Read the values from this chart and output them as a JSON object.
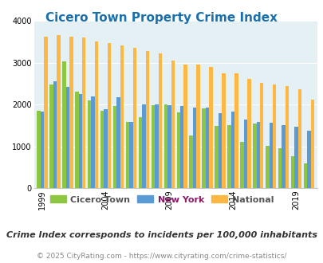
{
  "title": "Cicero Town Property Crime Index",
  "title_color": "#1a6fad",
  "subtitle": "Crime Index corresponds to incidents per 100,000 inhabitants",
  "footer": "© 2025 CityRating.com - https://www.cityrating.com/crime-statistics/",
  "years": [
    1999,
    2000,
    2001,
    2002,
    2003,
    2004,
    2005,
    2006,
    2007,
    2008,
    2009,
    2010,
    2011,
    2012,
    2013,
    2014,
    2015,
    2016,
    2017,
    2018,
    2019,
    2020
  ],
  "cicero_town": [
    1850,
    2490,
    3030,
    2300,
    2100,
    1860,
    1960,
    1580,
    1700,
    1980,
    2000,
    1820,
    1260,
    1900,
    1490,
    1510,
    1110,
    1540,
    1010,
    960,
    760,
    590
  ],
  "new_york": [
    1840,
    2550,
    2430,
    2260,
    2200,
    1880,
    2180,
    1590,
    2010,
    2010,
    1990,
    1960,
    1920,
    1930,
    1800,
    1840,
    1650,
    1590,
    1570,
    1510,
    1460,
    1370
  ],
  "national": [
    3620,
    3660,
    3620,
    3600,
    3510,
    3480,
    3410,
    3350,
    3290,
    3220,
    3050,
    2960,
    2960,
    2910,
    2740,
    2750,
    2620,
    2510,
    2490,
    2450,
    2370,
    2110
  ],
  "cicero_color": "#8dc63f",
  "newyork_color": "#5b9bd5",
  "national_color": "#fdb843",
  "bg_color": "#e5f0f5",
  "ylim": [
    0,
    4000
  ],
  "yticks": [
    0,
    1000,
    2000,
    3000,
    4000
  ],
  "bar_width": 0.28,
  "tick_years": [
    1999,
    2004,
    2009,
    2014,
    2019
  ],
  "legend_labels": [
    "Cicero Town",
    "New York",
    "National"
  ],
  "legend_text_colors": [
    "#555555",
    "#8b1a6b",
    "#555555"
  ],
  "subtitle_color": "#333333",
  "footer_color": "#888888",
  "title_fontsize": 11,
  "subtitle_fontsize": 8,
  "footer_fontsize": 6.5,
  "tick_fontsize": 7,
  "legend_fontsize": 8
}
